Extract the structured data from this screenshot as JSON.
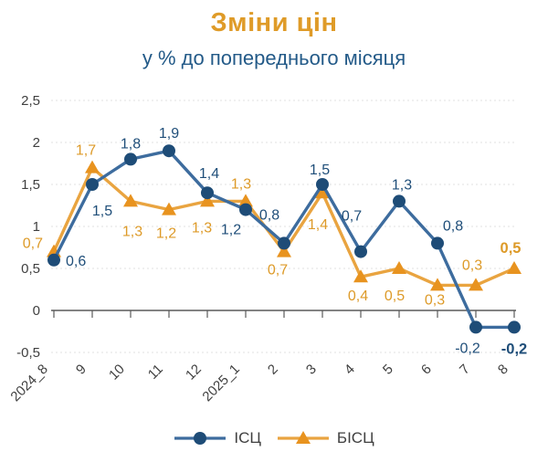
{
  "title": "Зміни цін",
  "subtitle": "у % до попереднього місяця",
  "colors": {
    "title": "#DF9B28",
    "subtitle": "#235A88",
    "icp_line": "#3D6C9E",
    "icp_marker": "#1E4C77",
    "icp_label": "#1F4E79",
    "bicp_line": "#E9A440",
    "bicp_marker": "#E8931F",
    "bicp_label": "#DD9A28",
    "grid": "#E2E2E2",
    "axis": "#5A5A5A",
    "tick_label": "#3F3F3F"
  },
  "chart_data": {
    "type": "line",
    "title": "Зміни цін",
    "subtitle": "у % до попереднього місяця",
    "categories": [
      "2024_8",
      "9",
      "10",
      "11",
      "12",
      "2025_1",
      "2",
      "3",
      "4",
      "5",
      "6",
      "7",
      "8"
    ],
    "series": [
      {
        "name": "ІСЦ",
        "marker": "circle",
        "values": [
          0.6,
          1.5,
          1.8,
          1.9,
          1.4,
          1.2,
          0.8,
          1.5,
          0.7,
          1.3,
          0.8,
          -0.2,
          -0.2
        ],
        "labels": [
          "0,6",
          "1,5",
          "1,8",
          "1,9",
          "1,4",
          "1,2",
          "0,8",
          "1,5",
          "0,7",
          "1,3",
          "0,8",
          "-0,2",
          "-0,2"
        ],
        "label_offsets": [
          [
            13,
            6
          ],
          [
            11,
            34
          ],
          [
            0,
            -12
          ],
          [
            0,
            -14
          ],
          [
            2,
            -16
          ],
          [
            -16,
            27
          ],
          [
            -16,
            -26
          ],
          [
            -3,
            -11
          ],
          [
            -10,
            -34
          ],
          [
            3,
            -13
          ],
          [
            17,
            -14
          ],
          [
            -9,
            28
          ],
          [
            0,
            29
          ]
        ],
        "label_anchors": [
          "start",
          "middle",
          "middle",
          "middle",
          "middle",
          "middle",
          "middle",
          "middle",
          "middle",
          "middle",
          "middle",
          "middle",
          "middle"
        ],
        "label_bold": [
          false,
          false,
          false,
          false,
          false,
          false,
          false,
          false,
          false,
          false,
          false,
          false,
          true
        ]
      },
      {
        "name": "БІСЦ",
        "marker": "triangle",
        "values": [
          0.7,
          1.7,
          1.3,
          1.2,
          1.3,
          1.3,
          0.7,
          1.4,
          0.4,
          0.5,
          0.3,
          0.3,
          0.5
        ],
        "labels": [
          "0,7",
          "1,7",
          "1,3",
          "1,2",
          "1,3",
          "1,3",
          "0,7",
          "1,4",
          "0,4",
          "0,5",
          "0,3",
          "0,3",
          "0,5"
        ],
        "label_offsets": [
          [
            -12,
            -4
          ],
          [
            -7,
            -14
          ],
          [
            2,
            38
          ],
          [
            -3,
            31
          ],
          [
            -6,
            34
          ],
          [
            -5,
            -14
          ],
          [
            -7,
            25
          ],
          [
            -5,
            40
          ],
          [
            -3,
            26
          ],
          [
            -5,
            35
          ],
          [
            -3,
            21
          ],
          [
            -4,
            -17
          ],
          [
            -4,
            -17
          ]
        ],
        "label_anchors": [
          "end",
          "middle",
          "middle",
          "middle",
          "middle",
          "middle",
          "middle",
          "middle",
          "middle",
          "middle",
          "middle",
          "middle",
          "middle"
        ],
        "label_bold": [
          false,
          false,
          false,
          false,
          false,
          false,
          false,
          false,
          false,
          false,
          false,
          false,
          true
        ]
      }
    ],
    "yticks": [
      {
        "value": 2.5,
        "label": "2,5"
      },
      {
        "value": 2,
        "label": "2"
      },
      {
        "value": 1.5,
        "label": "1,5"
      },
      {
        "value": 1,
        "label": "1"
      },
      {
        "value": 0.5,
        "label": "0,5"
      },
      {
        "value": 0,
        "label": "0"
      },
      {
        "value": -0.5,
        "label": "-0,5"
      }
    ],
    "ylim": [
      -0.5,
      2.5
    ],
    "grid": true,
    "legend_position": "bottom"
  },
  "legend": {
    "items": [
      {
        "label": "ІСЦ",
        "marker": "circle"
      },
      {
        "label": "БІСЦ",
        "marker": "triangle"
      }
    ]
  }
}
